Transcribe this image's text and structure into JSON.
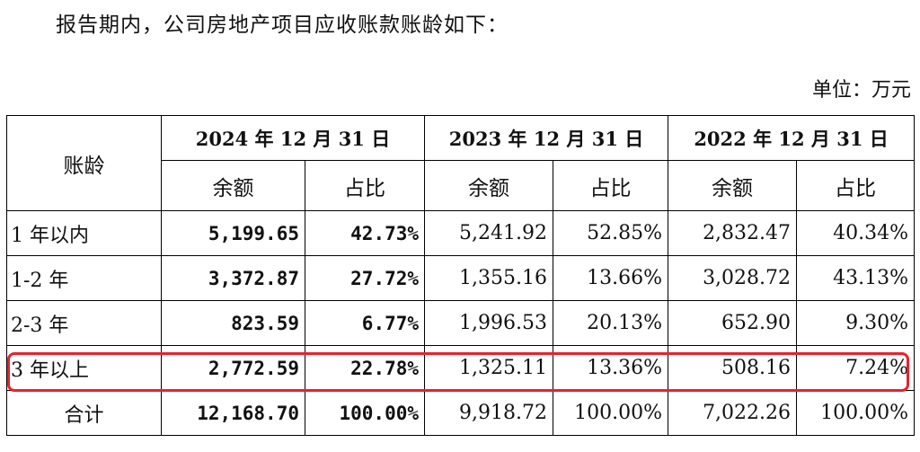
{
  "intro": "报告期内，公司房地产项目应收账款账龄如下：",
  "unit": "单位：万元",
  "header": {
    "aging": "账龄",
    "periods": [
      "2024 年 12 月 31 日",
      "2023 年 12 月 31 日",
      "2022 年 12 月 31 日"
    ],
    "balance": "余额",
    "ratio": "占比"
  },
  "rows": [
    {
      "label": "1 年以内",
      "v2024": "5,199.65",
      "p2024": "42.73%",
      "v2023": "5,241.92",
      "p2023": "52.85%",
      "v2022": "2,832.47",
      "p2022": "40.34%"
    },
    {
      "label": "1-2 年",
      "v2024": "3,372.87",
      "p2024": "27.72%",
      "v2023": "1,355.16",
      "p2023": "13.66%",
      "v2022": "3,028.72",
      "p2022": "43.13%"
    },
    {
      "label": "2-3 年",
      "v2024": "823.59",
      "p2024": "6.77%",
      "v2023": "1,996.53",
      "p2023": "20.13%",
      "v2022": "652.90",
      "p2022": "9.30%"
    },
    {
      "label": "3 年以上",
      "v2024": "2,772.59",
      "p2024": "22.78%",
      "v2023": "1,325.11",
      "p2023": "13.36%",
      "v2022": "508.16",
      "p2022": "7.24%"
    },
    {
      "label": "合计",
      "v2024": "12,168.70",
      "p2024": "100.00%",
      "v2023": "9,918.72",
      "p2023": "100.00%",
      "v2022": "7,022.26",
      "p2022": "100.00%"
    }
  ],
  "highlight_color": "#e8222d"
}
